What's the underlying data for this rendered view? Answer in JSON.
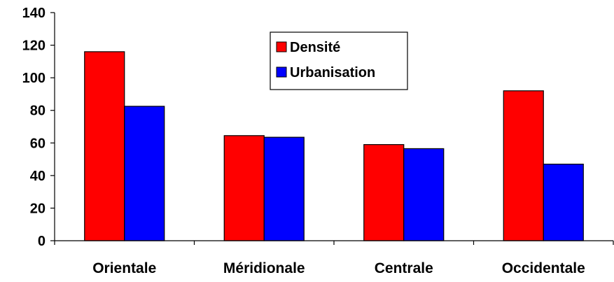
{
  "chart_data": {
    "type": "bar",
    "title": "",
    "xlabel": "",
    "ylabel": "",
    "categories": [
      "Orientale",
      "Méridionale",
      "Centrale",
      "Occidentale"
    ],
    "series": [
      {
        "name": "Densité",
        "color": "#ff0000",
        "values": [
          116,
          64.5,
          59,
          92
        ]
      },
      {
        "name": "Urbanisation",
        "color": "#0000ff",
        "values": [
          82.5,
          63.5,
          56.5,
          47
        ]
      }
    ],
    "ylim": [
      0,
      140
    ],
    "yticks": [
      0,
      20,
      40,
      60,
      80,
      100,
      120,
      140
    ],
    "grid": false,
    "legend_position": "top-center"
  }
}
